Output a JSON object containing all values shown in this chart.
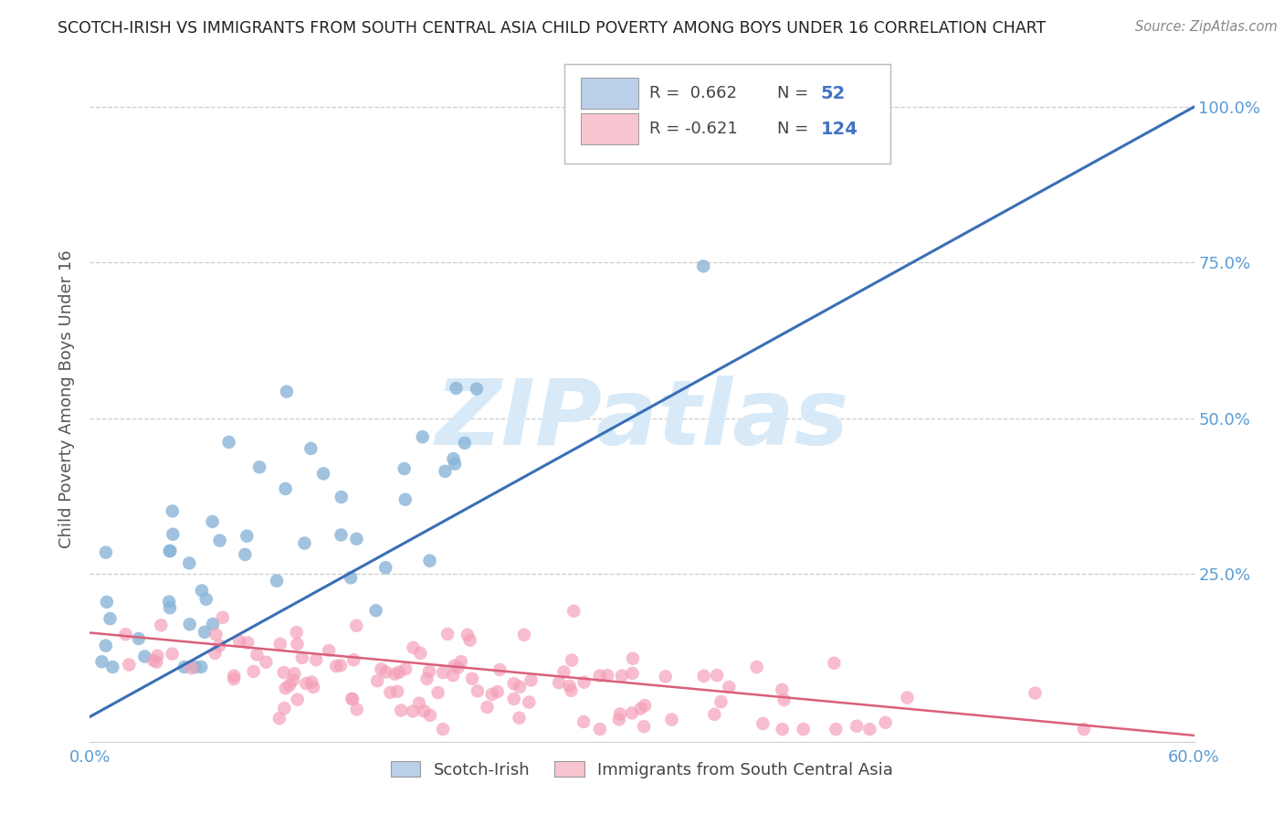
{
  "title": "SCOTCH-IRISH VS IMMIGRANTS FROM SOUTH CENTRAL ASIA CHILD POVERTY AMONG BOYS UNDER 16 CORRELATION CHART",
  "source": "Source: ZipAtlas.com",
  "ylabel": "Child Poverty Among Boys Under 16",
  "ytick_labels": [
    "25.0%",
    "50.0%",
    "75.0%",
    "100.0%"
  ],
  "ytick_values": [
    0.25,
    0.5,
    0.75,
    1.0
  ],
  "xlim": [
    0.0,
    0.6
  ],
  "ylim": [
    -0.02,
    1.08
  ],
  "watermark": "ZIPatlas",
  "series1": {
    "name": "Scotch-Irish",
    "R": 0.662,
    "N": 52,
    "dot_color": "#8ab4d8",
    "line_color": "#3a6fb5",
    "legend_facecolor": "#bad0e8"
  },
  "series2": {
    "name": "Immigrants from South Central Asia",
    "R": -0.621,
    "N": 124,
    "dot_color": "#f4a0b8",
    "line_color": "#d9607a",
    "legend_facecolor": "#f8c4d0"
  },
  "background_color": "#ffffff",
  "grid_color": "#c8c8c8",
  "title_color": "#222222",
  "tick_color": "#5b9bd5",
  "legend_text_color": "#444444",
  "legend_N_color": "#4472c4",
  "watermark_color": "#d8eaf8"
}
